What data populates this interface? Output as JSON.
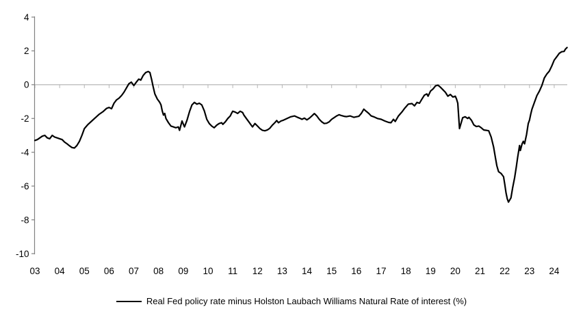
{
  "chart_data": {
    "type": "line",
    "title": "",
    "xlabel": "",
    "ylabel": "",
    "legend": [
      "Real Fed policy rate minus Holston Laubach Williams Natural Rate of interest (%)"
    ],
    "legend_position": "bottom-center",
    "grid": "zero-line-only",
    "ylim": [
      -10,
      4
    ],
    "y_ticks": [
      "4",
      "2",
      "0",
      "-2",
      "-4",
      "-6",
      "-8",
      "-10"
    ],
    "y_tick_values": [
      4,
      2,
      0,
      -2,
      -4,
      -6,
      -8,
      -10
    ],
    "x_tick_labels": [
      "03",
      "04",
      "05",
      "06",
      "07",
      "08",
      "09",
      "10",
      "11",
      "12",
      "13",
      "14",
      "15",
      "16",
      "17",
      "18",
      "19",
      "20",
      "21",
      "22",
      "23",
      "24"
    ],
    "x_tick_years": [
      2003,
      2004,
      2005,
      2006,
      2007,
      2008,
      2009,
      2010,
      2011,
      2012,
      2013,
      2014,
      2015,
      2016,
      2017,
      2018,
      2019,
      2020,
      2021,
      2022,
      2023,
      2024
    ],
    "x_range": [
      2003.0,
      2024.62
    ],
    "line_color": "#000000",
    "axis_color": "#808080",
    "zero_line_color": "#b5b5b5",
    "points": [
      [
        2003.0,
        -3.3
      ],
      [
        2003.1,
        -3.25
      ],
      [
        2003.2,
        -3.15
      ],
      [
        2003.3,
        -3.05
      ],
      [
        2003.4,
        -3.0
      ],
      [
        2003.5,
        -3.15
      ],
      [
        2003.6,
        -3.2
      ],
      [
        2003.7,
        -3.0
      ],
      [
        2003.8,
        -3.1
      ],
      [
        2003.9,
        -3.15
      ],
      [
        2004.0,
        -3.2
      ],
      [
        2004.1,
        -3.25
      ],
      [
        2004.2,
        -3.4
      ],
      [
        2004.3,
        -3.5
      ],
      [
        2004.4,
        -3.62
      ],
      [
        2004.5,
        -3.72
      ],
      [
        2004.6,
        -3.75
      ],
      [
        2004.7,
        -3.6
      ],
      [
        2004.8,
        -3.35
      ],
      [
        2004.9,
        -3.0
      ],
      [
        2005.0,
        -2.6
      ],
      [
        2005.15,
        -2.35
      ],
      [
        2005.3,
        -2.15
      ],
      [
        2005.45,
        -1.95
      ],
      [
        2005.6,
        -1.75
      ],
      [
        2005.75,
        -1.6
      ],
      [
        2005.9,
        -1.4
      ],
      [
        2006.0,
        -1.35
      ],
      [
        2006.1,
        -1.42
      ],
      [
        2006.2,
        -1.1
      ],
      [
        2006.3,
        -0.9
      ],
      [
        2006.4,
        -0.8
      ],
      [
        2006.5,
        -0.65
      ],
      [
        2006.6,
        -0.45
      ],
      [
        2006.7,
        -0.2
      ],
      [
        2006.8,
        0.05
      ],
      [
        2006.9,
        0.15
      ],
      [
        2007.0,
        -0.05
      ],
      [
        2007.1,
        0.15
      ],
      [
        2007.2,
        0.33
      ],
      [
        2007.28,
        0.27
      ],
      [
        2007.38,
        0.55
      ],
      [
        2007.48,
        0.72
      ],
      [
        2007.58,
        0.78
      ],
      [
        2007.65,
        0.72
      ],
      [
        2007.72,
        0.3
      ],
      [
        2007.78,
        -0.1
      ],
      [
        2007.85,
        -0.55
      ],
      [
        2007.95,
        -0.85
      ],
      [
        2008.0,
        -0.95
      ],
      [
        2008.05,
        -1.05
      ],
      [
        2008.1,
        -1.2
      ],
      [
        2008.15,
        -1.55
      ],
      [
        2008.2,
        -1.8
      ],
      [
        2008.25,
        -1.7
      ],
      [
        2008.3,
        -2.0
      ],
      [
        2008.4,
        -2.25
      ],
      [
        2008.5,
        -2.45
      ],
      [
        2008.6,
        -2.5
      ],
      [
        2008.7,
        -2.55
      ],
      [
        2008.8,
        -2.5
      ],
      [
        2008.85,
        -2.7
      ],
      [
        2008.95,
        -2.15
      ],
      [
        2009.05,
        -2.5
      ],
      [
        2009.15,
        -2.1
      ],
      [
        2009.25,
        -1.6
      ],
      [
        2009.35,
        -1.2
      ],
      [
        2009.45,
        -1.05
      ],
      [
        2009.55,
        -1.15
      ],
      [
        2009.65,
        -1.1
      ],
      [
        2009.75,
        -1.2
      ],
      [
        2009.85,
        -1.55
      ],
      [
        2009.95,
        -2.05
      ],
      [
        2010.05,
        -2.3
      ],
      [
        2010.15,
        -2.45
      ],
      [
        2010.25,
        -2.55
      ],
      [
        2010.35,
        -2.4
      ],
      [
        2010.45,
        -2.3
      ],
      [
        2010.55,
        -2.25
      ],
      [
        2010.6,
        -2.35
      ],
      [
        2010.7,
        -2.2
      ],
      [
        2010.8,
        -2.0
      ],
      [
        2010.9,
        -1.85
      ],
      [
        2010.95,
        -1.7
      ],
      [
        2011.0,
        -1.57
      ],
      [
        2011.1,
        -1.62
      ],
      [
        2011.2,
        -1.7
      ],
      [
        2011.3,
        -1.57
      ],
      [
        2011.4,
        -1.65
      ],
      [
        2011.45,
        -1.8
      ],
      [
        2011.55,
        -2.0
      ],
      [
        2011.65,
        -2.2
      ],
      [
        2011.75,
        -2.4
      ],
      [
        2011.8,
        -2.5
      ],
      [
        2011.9,
        -2.3
      ],
      [
        2012.0,
        -2.45
      ],
      [
        2012.1,
        -2.6
      ],
      [
        2012.2,
        -2.7
      ],
      [
        2012.3,
        -2.73
      ],
      [
        2012.4,
        -2.68
      ],
      [
        2012.5,
        -2.58
      ],
      [
        2012.6,
        -2.4
      ],
      [
        2012.7,
        -2.25
      ],
      [
        2012.78,
        -2.12
      ],
      [
        2012.85,
        -2.25
      ],
      [
        2012.95,
        -2.15
      ],
      [
        2013.05,
        -2.1
      ],
      [
        2013.2,
        -2.0
      ],
      [
        2013.35,
        -1.9
      ],
      [
        2013.5,
        -1.85
      ],
      [
        2013.6,
        -1.92
      ],
      [
        2013.7,
        -1.98
      ],
      [
        2013.8,
        -2.05
      ],
      [
        2013.9,
        -1.98
      ],
      [
        2014.0,
        -2.08
      ],
      [
        2014.1,
        -1.98
      ],
      [
        2014.2,
        -1.85
      ],
      [
        2014.3,
        -1.71
      ],
      [
        2014.4,
        -1.85
      ],
      [
        2014.5,
        -2.05
      ],
      [
        2014.6,
        -2.2
      ],
      [
        2014.7,
        -2.3
      ],
      [
        2014.8,
        -2.28
      ],
      [
        2014.9,
        -2.2
      ],
      [
        2015.0,
        -2.05
      ],
      [
        2015.1,
        -1.95
      ],
      [
        2015.2,
        -1.85
      ],
      [
        2015.3,
        -1.78
      ],
      [
        2015.4,
        -1.83
      ],
      [
        2015.5,
        -1.87
      ],
      [
        2015.6,
        -1.89
      ],
      [
        2015.75,
        -1.85
      ],
      [
        2015.9,
        -1.93
      ],
      [
        2016.0,
        -1.9
      ],
      [
        2016.1,
        -1.87
      ],
      [
        2016.2,
        -1.7
      ],
      [
        2016.3,
        -1.45
      ],
      [
        2016.4,
        -1.58
      ],
      [
        2016.5,
        -1.7
      ],
      [
        2016.6,
        -1.85
      ],
      [
        2016.7,
        -1.9
      ],
      [
        2016.85,
        -2.0
      ],
      [
        2017.0,
        -2.05
      ],
      [
        2017.15,
        -2.15
      ],
      [
        2017.3,
        -2.23
      ],
      [
        2017.4,
        -2.25
      ],
      [
        2017.5,
        -2.05
      ],
      [
        2017.57,
        -2.18
      ],
      [
        2017.7,
        -1.85
      ],
      [
        2017.85,
        -1.6
      ],
      [
        2017.95,
        -1.4
      ],
      [
        2018.1,
        -1.15
      ],
      [
        2018.25,
        -1.12
      ],
      [
        2018.35,
        -1.25
      ],
      [
        2018.45,
        -1.05
      ],
      [
        2018.55,
        -1.1
      ],
      [
        2018.65,
        -0.85
      ],
      [
        2018.75,
        -0.62
      ],
      [
        2018.85,
        -0.55
      ],
      [
        2018.9,
        -0.68
      ],
      [
        2019.0,
        -0.38
      ],
      [
        2019.1,
        -0.25
      ],
      [
        2019.2,
        -0.07
      ],
      [
        2019.3,
        -0.03
      ],
      [
        2019.4,
        -0.15
      ],
      [
        2019.5,
        -0.3
      ],
      [
        2019.6,
        -0.45
      ],
      [
        2019.7,
        -0.68
      ],
      [
        2019.8,
        -0.58
      ],
      [
        2019.9,
        -0.73
      ],
      [
        2020.0,
        -0.68
      ],
      [
        2020.05,
        -0.85
      ],
      [
        2020.1,
        -1.1
      ],
      [
        2020.17,
        -2.6
      ],
      [
        2020.25,
        -2.2
      ],
      [
        2020.3,
        -1.95
      ],
      [
        2020.4,
        -1.9
      ],
      [
        2020.5,
        -2.0
      ],
      [
        2020.55,
        -1.93
      ],
      [
        2020.65,
        -2.1
      ],
      [
        2020.75,
        -2.38
      ],
      [
        2020.85,
        -2.48
      ],
      [
        2020.95,
        -2.45
      ],
      [
        2021.05,
        -2.55
      ],
      [
        2021.15,
        -2.68
      ],
      [
        2021.25,
        -2.7
      ],
      [
        2021.35,
        -2.73
      ],
      [
        2021.45,
        -3.1
      ],
      [
        2021.55,
        -3.7
      ],
      [
        2021.62,
        -4.3
      ],
      [
        2021.68,
        -4.8
      ],
      [
        2021.75,
        -5.15
      ],
      [
        2021.85,
        -5.25
      ],
      [
        2021.95,
        -5.45
      ],
      [
        2022.0,
        -5.9
      ],
      [
        2022.05,
        -6.4
      ],
      [
        2022.1,
        -6.75
      ],
      [
        2022.15,
        -6.95
      ],
      [
        2022.25,
        -6.7
      ],
      [
        2022.32,
        -6.1
      ],
      [
        2022.4,
        -5.5
      ],
      [
        2022.47,
        -4.85
      ],
      [
        2022.52,
        -4.3
      ],
      [
        2022.57,
        -3.85
      ],
      [
        2022.6,
        -3.6
      ],
      [
        2022.63,
        -3.9
      ],
      [
        2022.7,
        -3.5
      ],
      [
        2022.75,
        -3.35
      ],
      [
        2022.8,
        -3.5
      ],
      [
        2022.88,
        -2.95
      ],
      [
        2022.95,
        -2.3
      ],
      [
        2023.0,
        -2.1
      ],
      [
        2023.05,
        -1.75
      ],
      [
        2023.1,
        -1.45
      ],
      [
        2023.2,
        -1.05
      ],
      [
        2023.3,
        -0.65
      ],
      [
        2023.4,
        -0.38
      ],
      [
        2023.5,
        -0.05
      ],
      [
        2023.6,
        0.4
      ],
      [
        2023.7,
        0.63
      ],
      [
        2023.8,
        0.8
      ],
      [
        2023.9,
        1.1
      ],
      [
        2024.0,
        1.45
      ],
      [
        2024.1,
        1.65
      ],
      [
        2024.2,
        1.85
      ],
      [
        2024.3,
        1.95
      ],
      [
        2024.4,
        1.97
      ],
      [
        2024.45,
        2.1
      ],
      [
        2024.52,
        2.2
      ]
    ]
  }
}
